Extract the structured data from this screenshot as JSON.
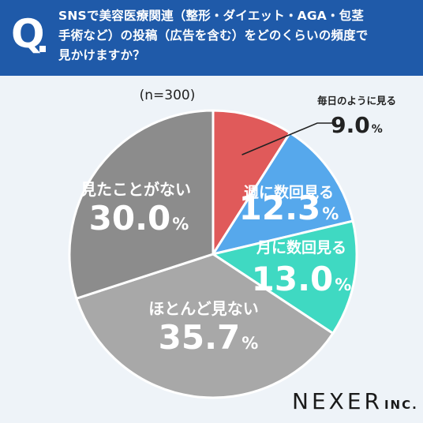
{
  "header": {
    "q_mark": "Q",
    "question_lines": [
      "SNSで美容医療関連（整形・ダイエット・AGA・包茎",
      "手術など）の投稿（広告を含む）をどのくらいの頻度で",
      "見かけますか？"
    ]
  },
  "chart_data": {
    "type": "pie",
    "title": "",
    "note": "(n=300)",
    "start_angle_deg": 0,
    "direction": "clockwise",
    "slices": [
      {
        "label": "毎日のように見る",
        "value": 9.0,
        "value_text": "9.0",
        "unit": "%",
        "color": "#e05a5a"
      },
      {
        "label": "週に数回見る",
        "value": 12.3,
        "value_text": "12.3",
        "unit": "%",
        "color": "#56a8ec"
      },
      {
        "label": "月に数回見る",
        "value": 13.0,
        "value_text": "13.0",
        "unit": "%",
        "color": "#3fd9c2"
      },
      {
        "label": "ほとんど見ない",
        "value": 35.7,
        "value_text": "35.7",
        "unit": "%",
        "color": "#a8a8a8"
      },
      {
        "label": "見たことがない",
        "value": 30.0,
        "value_text": "30.0",
        "unit": "%",
        "color": "#8c8c8c"
      }
    ]
  },
  "brand": {
    "name": "NEXER",
    "suffix": "INC."
  },
  "colors": {
    "header_bg": "#1f5aa9",
    "background": "#eef3f8"
  }
}
